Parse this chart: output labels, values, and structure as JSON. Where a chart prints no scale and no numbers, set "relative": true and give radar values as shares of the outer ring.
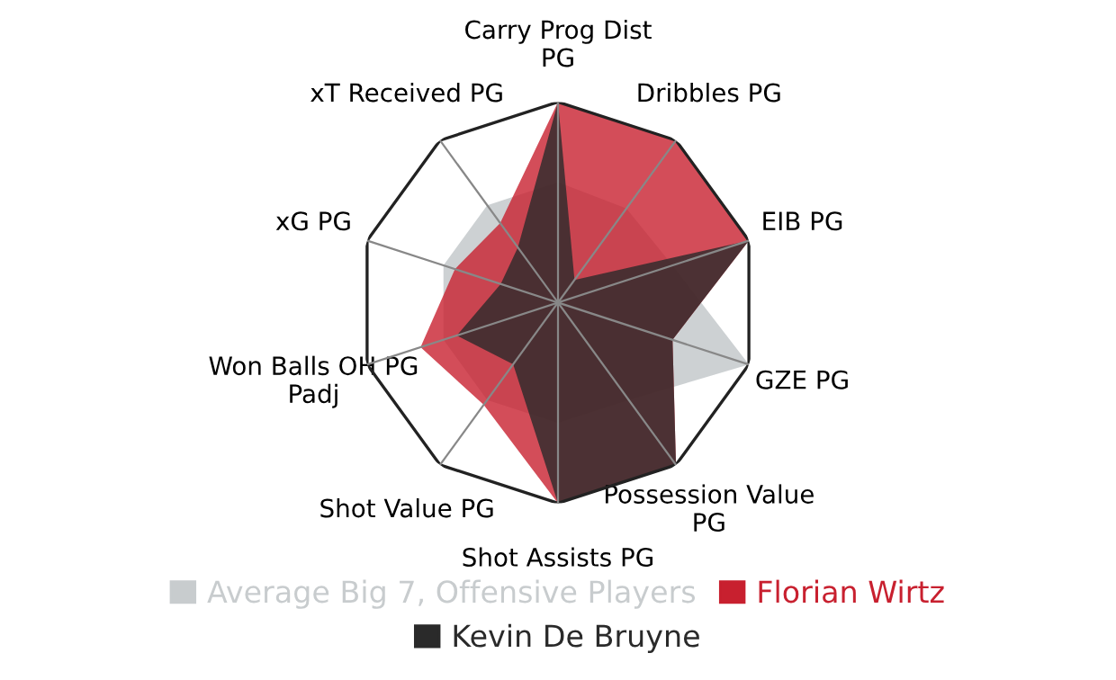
{
  "chart_data": {
    "type": "radar",
    "relative": true,
    "grid": true,
    "legend": "bottom",
    "categories": [
      "Carry Prog Dist\nPG",
      "Dribbles PG",
      "EIB PG",
      "GZE PG",
      "Possession Value\nPG",
      "Shot Assists PG",
      "Shot Value PG",
      "Won Balls OH PG\nPadj",
      "xG PG",
      "xT Received PG"
    ],
    "series": [
      {
        "name": "Average Big 7, Offensive Players",
        "color": "#c8ccce",
        "values": [
          0.6,
          0.58,
          0.6,
          1.0,
          0.6,
          0.6,
          0.6,
          0.6,
          0.6,
          0.6
        ]
      },
      {
        "name": "Florian Wirtz",
        "color": "#c8202f",
        "values": [
          1.0,
          1.0,
          1.0,
          0.6,
          1.0,
          1.0,
          0.63,
          0.72,
          0.54,
          0.49
        ]
      },
      {
        "name": "Kevin De Bruyne",
        "color": "#2a2a2a",
        "values": [
          1.0,
          0.14,
          1.0,
          0.6,
          1.0,
          1.0,
          0.38,
          0.53,
          0.3,
          0.34
        ]
      }
    ]
  }
}
